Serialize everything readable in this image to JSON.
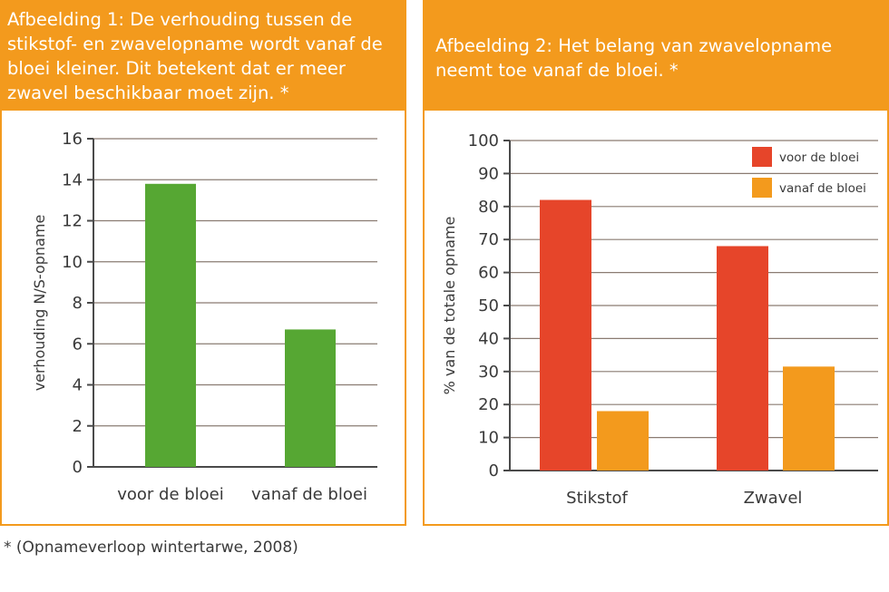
{
  "colors": {
    "header_bg": "#f39a1d",
    "header_text": "#ffffff",
    "green_bar": "#56a733",
    "red_bar": "#e6452a",
    "orange_bar": "#f39a1d",
    "grid": "#8a7b72",
    "axis": "#4a4a4a"
  },
  "footnote": "* (Opnameverloop wintertarwe, 2008)",
  "chart_data": [
    {
      "type": "bar",
      "title": "Afbeelding 1: De verhouding tussen de stikstof- en zwavelopname wordt vanaf de bloei kleiner. Dit betekent dat er meer zwavel beschikbaar moet zijn. *",
      "xlabel": "",
      "ylabel": "verhouding N/S-opname",
      "categories": [
        "voor de bloei",
        "vanaf de bloei"
      ],
      "values": [
        13.8,
        6.7
      ],
      "ylim": [
        0,
        16
      ],
      "yticks": [
        0,
        2,
        4,
        6,
        8,
        10,
        12,
        14,
        16
      ],
      "grid": true,
      "legend": "none"
    },
    {
      "type": "bar",
      "title": "Afbeelding 2: Het belang van zwavelopname neemt toe vanaf de bloei. *",
      "xlabel": "",
      "ylabel": "% van de totale opname",
      "categories": [
        "Stikstof",
        "Zwavel"
      ],
      "series": [
        {
          "name": "voor de bloei",
          "values": [
            82,
            68
          ]
        },
        {
          "name": "vanaf de bloei",
          "values": [
            18,
            31.5
          ]
        }
      ],
      "ylim": [
        0,
        100
      ],
      "yticks": [
        0,
        10,
        20,
        30,
        40,
        50,
        60,
        70,
        80,
        90,
        100
      ],
      "grid": true,
      "legend": "top-right"
    }
  ]
}
